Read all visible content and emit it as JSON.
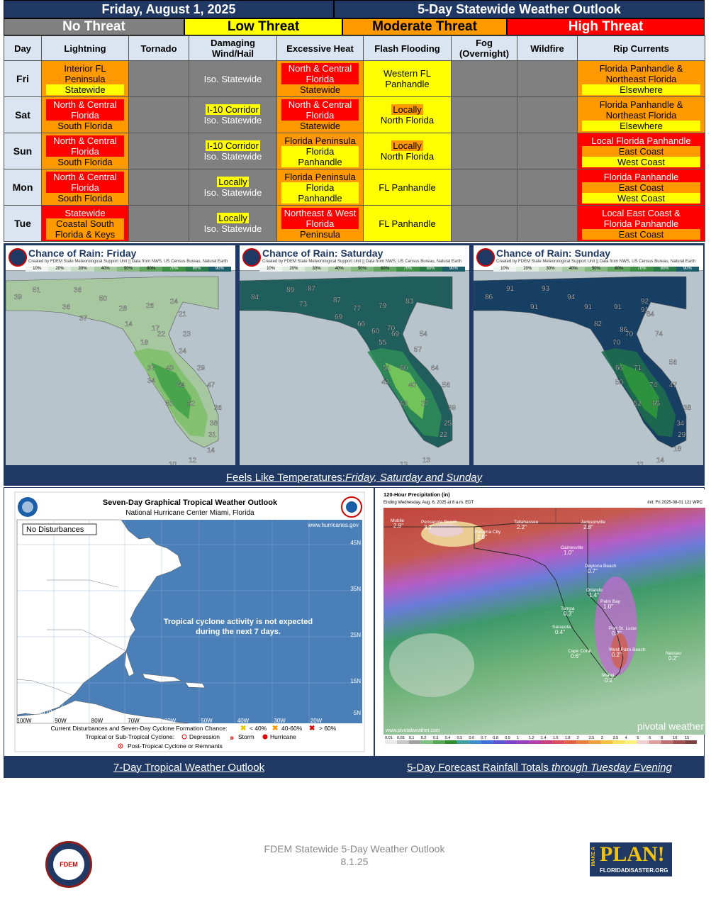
{
  "header": {
    "date": "Friday, August 1, 2025",
    "title": "5-Day Statewide Weather Outlook"
  },
  "legend": {
    "none": "No Threat",
    "low": "Low Threat",
    "moderate": "Moderate Threat",
    "high": "High Threat"
  },
  "colors": {
    "navy": "#1f3864",
    "none": "#808080",
    "low": "#ffff00",
    "moderate": "#ff9900",
    "high": "#ff0000"
  },
  "columns": [
    "Day",
    "Lightning",
    "Tornado",
    "Damaging Wind/Hail",
    "Excessive Heat",
    "Flash Flooding",
    "Fog (Overnight)",
    "Wildfire",
    "Rip Currents"
  ],
  "rows": [
    {
      "day": "Fri",
      "lightning": {
        "level": "mod",
        "lines": [
          [
            "Interior FL",
            ""
          ],
          [
            "Peninsula",
            ""
          ],
          [
            "Statewide",
            "low"
          ]
        ]
      },
      "tornado": {
        "level": "none",
        "lines": []
      },
      "wind": {
        "level": "none",
        "lines": [
          [
            "Iso. Statewide",
            ""
          ]
        ]
      },
      "heat": {
        "level": "mod",
        "lines": [
          [
            "North & Central",
            "high"
          ],
          [
            "Florida",
            "high"
          ],
          [
            "Statewide",
            ""
          ]
        ]
      },
      "flood": {
        "level": "low",
        "lines": [
          [
            "Western FL",
            ""
          ],
          [
            "Panhandle",
            ""
          ]
        ]
      },
      "fog": {
        "level": "none",
        "lines": []
      },
      "wildfire": {
        "level": "none",
        "lines": []
      },
      "rip": {
        "level": "mod",
        "lines": [
          [
            "Florida Panhandle &",
            ""
          ],
          [
            "Northeast Florida",
            ""
          ],
          [
            "Elsewhere",
            "low"
          ]
        ]
      }
    },
    {
      "day": "Sat",
      "lightning": {
        "level": "mod",
        "lines": [
          [
            "North & Central",
            "high"
          ],
          [
            "Florida",
            "high"
          ],
          [
            "South Florida",
            ""
          ]
        ]
      },
      "tornado": {
        "level": "none",
        "lines": []
      },
      "wind": {
        "level": "none",
        "lines": [
          [
            "I-10 Corridor",
            "low"
          ],
          [
            "Iso. Statewide",
            ""
          ]
        ]
      },
      "heat": {
        "level": "mod",
        "lines": [
          [
            "North & Central",
            "high"
          ],
          [
            "Florida",
            "high"
          ],
          [
            "Statewide",
            ""
          ]
        ]
      },
      "flood": {
        "level": "low",
        "lines": [
          [
            "Locally",
            "mod"
          ],
          [
            "North Florida",
            ""
          ]
        ]
      },
      "fog": {
        "level": "none",
        "lines": []
      },
      "wildfire": {
        "level": "none",
        "lines": []
      },
      "rip": {
        "level": "mod",
        "lines": [
          [
            "Florida Panhandle &",
            ""
          ],
          [
            "Northeast Florida",
            ""
          ],
          [
            "Elsewhere",
            "low"
          ]
        ]
      }
    },
    {
      "day": "Sun",
      "lightning": {
        "level": "mod",
        "lines": [
          [
            "North & Central",
            "high"
          ],
          [
            "Florida",
            "high"
          ],
          [
            "South Florida",
            ""
          ]
        ]
      },
      "tornado": {
        "level": "none",
        "lines": []
      },
      "wind": {
        "level": "none",
        "lines": [
          [
            "I-10 Corridor",
            "low"
          ],
          [
            "Iso. Statewide",
            ""
          ]
        ]
      },
      "heat": {
        "level": "mod",
        "lines": [
          [
            "Florida Peninsula",
            ""
          ],
          [
            "Florida Panhandle",
            "low"
          ]
        ]
      },
      "flood": {
        "level": "low",
        "lines": [
          [
            "Locally",
            "mod"
          ],
          [
            "North Florida",
            ""
          ]
        ]
      },
      "fog": {
        "level": "none",
        "lines": []
      },
      "wildfire": {
        "level": "none",
        "lines": []
      },
      "rip": {
        "level": "high",
        "lines": [
          [
            "Local Florida Panhandle",
            ""
          ],
          [
            "East Coast",
            "mod"
          ],
          [
            "West Coast",
            "low"
          ]
        ]
      }
    },
    {
      "day": "Mon",
      "lightning": {
        "level": "mod",
        "lines": [
          [
            "North & Central",
            "high"
          ],
          [
            "Florida",
            "high"
          ],
          [
            "South Florida",
            ""
          ]
        ]
      },
      "tornado": {
        "level": "none",
        "lines": []
      },
      "wind": {
        "level": "none",
        "lines": [
          [
            "Locally",
            "low"
          ],
          [
            "Iso. Statewide",
            ""
          ]
        ]
      },
      "heat": {
        "level": "mod",
        "lines": [
          [
            "Florida Peninsula",
            ""
          ],
          [
            "Florida Panhandle",
            "low"
          ]
        ]
      },
      "flood": {
        "level": "low",
        "lines": [
          [
            "FL Panhandle",
            ""
          ]
        ]
      },
      "fog": {
        "level": "none",
        "lines": []
      },
      "wildfire": {
        "level": "none",
        "lines": []
      },
      "rip": {
        "level": "high",
        "lines": [
          [
            "Florida Panhandle",
            ""
          ],
          [
            "East Coast",
            "mod"
          ],
          [
            "West Coast",
            "low"
          ]
        ]
      }
    },
    {
      "day": "Tue",
      "lightning": {
        "level": "high",
        "lines": [
          [
            "Statewide",
            ""
          ],
          [
            "Coastal South",
            "mod"
          ],
          [
            "Florida & Keys",
            "mod"
          ]
        ]
      },
      "tornado": {
        "level": "none",
        "lines": []
      },
      "wind": {
        "level": "none",
        "lines": [
          [
            "Locally",
            "low"
          ],
          [
            "Iso. Statewide",
            ""
          ]
        ]
      },
      "heat": {
        "level": "mod",
        "lines": [
          [
            "Northeast & West",
            "high"
          ],
          [
            "Florida",
            "high"
          ],
          [
            "Peninsula",
            ""
          ]
        ]
      },
      "flood": {
        "level": "low",
        "lines": [
          [
            "FL Panhandle",
            ""
          ]
        ]
      },
      "fog": {
        "level": "none",
        "lines": []
      },
      "wildfire": {
        "level": "none",
        "lines": []
      },
      "rip": {
        "level": "high",
        "lines": [
          [
            "Local East Coast &",
            ""
          ],
          [
            "Florida Panhandle",
            ""
          ],
          [
            "East Coast",
            "mod"
          ]
        ]
      }
    }
  ],
  "rain_maps": {
    "credit": "Created by FDEM State Meteorological Support Unit || Data from NWS, US Census Bureau, Natural Earth",
    "scale": [
      "10%",
      "20%",
      "30%",
      "40%",
      "50%",
      "60%",
      "70%",
      "80%",
      "90%"
    ],
    "maps": [
      {
        "title": "Chance of Rain: Friday",
        "values": [
          "51",
          "36",
          "39",
          "36",
          "37",
          "50",
          "28",
          "26",
          "24",
          "21",
          "14",
          "17",
          "22",
          "23",
          "18",
          "24",
          "37",
          "43",
          "34",
          "29",
          "64",
          "47",
          "51",
          "62",
          "36",
          "38",
          "31",
          "14",
          "10",
          "12"
        ]
      },
      {
        "title": "Chance of Rain: Saturday",
        "values": [
          "89",
          "87",
          "84",
          "73",
          "87",
          "77",
          "79",
          "83",
          "69",
          "66",
          "60",
          "70",
          "69",
          "54",
          "55",
          "57",
          "51",
          "60",
          "42",
          "64",
          "40",
          "56",
          "63",
          "27",
          "39",
          "25",
          "22",
          "13",
          "13"
        ]
      },
      {
        "title": "Chance of Rain: Sunday",
        "values": [
          "91",
          "93",
          "86",
          "91",
          "94",
          "92",
          "91",
          "91",
          "91",
          "84",
          "82",
          "86",
          "70",
          "74",
          "70",
          "66",
          "71",
          "56",
          "50",
          "74",
          "47",
          "52",
          "65",
          "38",
          "34",
          "29",
          "18",
          "11",
          "14"
        ]
      }
    ]
  },
  "feels_like_caption": {
    "prefix": "Feels Like Temperatures: ",
    "days": "Friday, Saturday and Sunday"
  },
  "tropical": {
    "title": "Seven-Day Graphical Tropical Weather Outlook",
    "subtitle": "National Hurricane Center  Miami, Florida",
    "website": "www.hurricanes.gov",
    "no_disturbances": "No Disturbances",
    "message_line1": "Tropical cyclone activity is not expected",
    "message_line2": "during the next 7 days.",
    "timestamp_line1": "07:56 AM EDT",
    "timestamp_line2": "Fri Aug 01 2025",
    "lat_labels": [
      "45N",
      "35N",
      "25N",
      "15N",
      "5N"
    ],
    "lon_labels": [
      "100W",
      "90W",
      "80W",
      "70W",
      "60W",
      "50W",
      "40W",
      "30W",
      "20W"
    ],
    "legend_line1": "Current Disturbances and Seven-Day Cyclone Formation Chance:",
    "legend_lt40": "< 40%",
    "legend_40_60": "40-60%",
    "legend_gt60": "> 60%",
    "legend_line2": "Tropical or Sub-Tropical Cyclone:",
    "legend_depression": "Depression",
    "legend_storm": "Storm",
    "legend_hurricane": "Hurricane",
    "legend_post": "Post-Tropical Cyclone or Remnants"
  },
  "precip": {
    "title": "120-Hour Precipitation (in)",
    "subtitle": "Ending Wednesday, Aug. 6, 2025 at 8 a.m. EDT",
    "init": "Init: Fri 2025-08-01 12z WPC",
    "site": "www.pivotalweather.com",
    "brand": "pivotal weather",
    "cities": [
      {
        "name": "Mobile",
        "val": "2.9\""
      },
      {
        "name": "Pensacola Beach",
        "val": "3.2\""
      },
      {
        "name": "Panama City",
        "val": "2.9\""
      },
      {
        "name": "Tallahassee",
        "val": "2.2\""
      },
      {
        "name": "Jacksonville",
        "val": "2.8\""
      },
      {
        "name": "Gainesville",
        "val": "1.0\""
      },
      {
        "name": "Daytona Beach",
        "val": "0.7\""
      },
      {
        "name": "Orlando",
        "val": "1.4\""
      },
      {
        "name": "Tampa",
        "val": "0.3\""
      },
      {
        "name": "Palm Bay",
        "val": "1.0\""
      },
      {
        "name": "Sarasota",
        "val": "0.4\""
      },
      {
        "name": "Port St. Lucie",
        "val": "0.7\""
      },
      {
        "name": "West Palm Beach",
        "val": "0.2\""
      },
      {
        "name": "Cape Coral",
        "val": "0.6\""
      },
      {
        "name": "Nassau",
        "val": "0.2\""
      },
      {
        "name": "Miami",
        "val": "0.2\""
      }
    ],
    "scale": [
      "0.01",
      "0.05",
      "0.1",
      "0.2",
      "0.3",
      "0.4",
      "0.5",
      "0.6",
      "0.7",
      "0.8",
      "0.9",
      "1",
      "1.2",
      "1.4",
      "1.6",
      "1.8",
      "2",
      "2.5",
      "3",
      "3.5",
      "4",
      "5",
      "6",
      "8",
      "10",
      "15"
    ]
  },
  "captions": {
    "tropical": "7-Day Tropical Weather Outlook",
    "rain_prefix": "5-Day Forecast Rainfall Totals ",
    "rain_suffix": "through Tuesday Evening"
  },
  "footer": {
    "line1": "FDEM Statewide 5-Day Weather Outlook",
    "line2": "8.1.25",
    "seal_text": "FDEM",
    "plan_small": "MAKE A",
    "plan_big": "PLAN!",
    "plan_site": "FLORIDADISASTER.ORG"
  }
}
